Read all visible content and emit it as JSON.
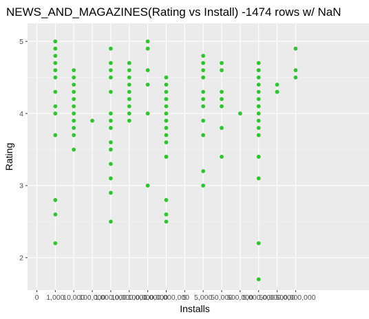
{
  "chart_data": {
    "type": "scatter",
    "title": "NEWS_AND_MAGAZINES(Rating vs Install) -1474 rows w/ NaN",
    "xlabel": "Installs",
    "ylabel": "Rating",
    "x_axis_kind": "categorical",
    "categories": [
      "0",
      "1,000",
      "10,000",
      "100,000",
      "1,000,000",
      "10,000,000",
      "100,000,000",
      "1,000,000,000",
      "5",
      "5,000",
      "50,000",
      "500,000",
      "5,000,000",
      "50,000,000",
      "500,000,000"
    ],
    "ylim": [
      1.55,
      5.25
    ],
    "y_ticks": [
      2,
      3,
      4,
      5
    ],
    "grid": true,
    "point_color": "#2ec62e",
    "panel_color": "#ebebeb",
    "series": [
      {
        "points": [
          {
            "x": "1,000",
            "y": 5.0
          },
          {
            "x": "1,000",
            "y": 4.9
          },
          {
            "x": "1,000",
            "y": 4.8
          },
          {
            "x": "1,000",
            "y": 4.7
          },
          {
            "x": "1,000",
            "y": 4.6
          },
          {
            "x": "1,000",
            "y": 4.5
          },
          {
            "x": "1,000",
            "y": 4.3
          },
          {
            "x": "1,000",
            "y": 4.1
          },
          {
            "x": "1,000",
            "y": 4.0
          },
          {
            "x": "1,000",
            "y": 3.7
          },
          {
            "x": "1,000",
            "y": 2.8
          },
          {
            "x": "1,000",
            "y": 2.6
          },
          {
            "x": "1,000",
            "y": 2.2
          },
          {
            "x": "10,000",
            "y": 4.6
          },
          {
            "x": "10,000",
            "y": 4.5
          },
          {
            "x": "10,000",
            "y": 4.4
          },
          {
            "x": "10,000",
            "y": 4.3
          },
          {
            "x": "10,000",
            "y": 4.2
          },
          {
            "x": "10,000",
            "y": 4.1
          },
          {
            "x": "10,000",
            "y": 4.0
          },
          {
            "x": "10,000",
            "y": 3.9
          },
          {
            "x": "10,000",
            "y": 3.8
          },
          {
            "x": "10,000",
            "y": 3.7
          },
          {
            "x": "10,000",
            "y": 3.5
          },
          {
            "x": "100,000",
            "y": 3.9
          },
          {
            "x": "1,000,000",
            "y": 4.9
          },
          {
            "x": "1,000,000",
            "y": 4.7
          },
          {
            "x": "1,000,000",
            "y": 4.6
          },
          {
            "x": "1,000,000",
            "y": 4.5
          },
          {
            "x": "1,000,000",
            "y": 4.3
          },
          {
            "x": "1,000,000",
            "y": 4.0
          },
          {
            "x": "1,000,000",
            "y": 3.9
          },
          {
            "x": "1,000,000",
            "y": 3.8
          },
          {
            "x": "1,000,000",
            "y": 3.6
          },
          {
            "x": "1,000,000",
            "y": 3.5
          },
          {
            "x": "1,000,000",
            "y": 3.3
          },
          {
            "x": "1,000,000",
            "y": 3.1
          },
          {
            "x": "1,000,000",
            "y": 2.9
          },
          {
            "x": "1,000,000",
            "y": 2.5
          },
          {
            "x": "10,000,000",
            "y": 4.7
          },
          {
            "x": "10,000,000",
            "y": 4.6
          },
          {
            "x": "10,000,000",
            "y": 4.5
          },
          {
            "x": "10,000,000",
            "y": 4.4
          },
          {
            "x": "10,000,000",
            "y": 4.3
          },
          {
            "x": "10,000,000",
            "y": 4.2
          },
          {
            "x": "10,000,000",
            "y": 4.1
          },
          {
            "x": "10,000,000",
            "y": 4.0
          },
          {
            "x": "10,000,000",
            "y": 3.9
          },
          {
            "x": "100,000,000",
            "y": 5.0
          },
          {
            "x": "100,000,000",
            "y": 4.9
          },
          {
            "x": "100,000,000",
            "y": 4.6
          },
          {
            "x": "100,000,000",
            "y": 4.4
          },
          {
            "x": "100,000,000",
            "y": 4.0
          },
          {
            "x": "100,000,000",
            "y": 3.0
          },
          {
            "x": "1,000,000,000",
            "y": 4.5
          },
          {
            "x": "1,000,000,000",
            "y": 4.4
          },
          {
            "x": "1,000,000,000",
            "y": 4.3
          },
          {
            "x": "1,000,000,000",
            "y": 4.2
          },
          {
            "x": "1,000,000,000",
            "y": 4.1
          },
          {
            "x": "1,000,000,000",
            "y": 4.0
          },
          {
            "x": "1,000,000,000",
            "y": 3.9
          },
          {
            "x": "1,000,000,000",
            "y": 3.8
          },
          {
            "x": "1,000,000,000",
            "y": 3.7
          },
          {
            "x": "1,000,000,000",
            "y": 3.6
          },
          {
            "x": "1,000,000,000",
            "y": 3.4
          },
          {
            "x": "1,000,000,000",
            "y": 2.8
          },
          {
            "x": "1,000,000,000",
            "y": 2.6
          },
          {
            "x": "1,000,000,000",
            "y": 2.5
          },
          {
            "x": "5,000",
            "y": 4.8
          },
          {
            "x": "5,000",
            "y": 4.7
          },
          {
            "x": "5,000",
            "y": 4.6
          },
          {
            "x": "5,000",
            "y": 4.5
          },
          {
            "x": "5,000",
            "y": 4.3
          },
          {
            "x": "5,000",
            "y": 4.2
          },
          {
            "x": "5,000",
            "y": 4.1
          },
          {
            "x": "5,000",
            "y": 3.9
          },
          {
            "x": "5,000",
            "y": 3.7
          },
          {
            "x": "5,000",
            "y": 3.2
          },
          {
            "x": "5,000",
            "y": 3.0
          },
          {
            "x": "50,000",
            "y": 4.7
          },
          {
            "x": "50,000",
            "y": 4.6
          },
          {
            "x": "50,000",
            "y": 4.3
          },
          {
            "x": "50,000",
            "y": 4.2
          },
          {
            "x": "50,000",
            "y": 4.1
          },
          {
            "x": "50,000",
            "y": 3.8
          },
          {
            "x": "50,000",
            "y": 3.4
          },
          {
            "x": "500,000",
            "y": 4.0
          },
          {
            "x": "5,000,000",
            "y": 4.6
          },
          {
            "x": "5,000,000",
            "y": 4.3
          },
          {
            "x": "5,000,000",
            "y": 4.2
          },
          {
            "x": "5,000,000",
            "y": 4.1
          },
          {
            "x": "5,000,000",
            "y": 4.0
          },
          {
            "x": "5,000,000",
            "y": 3.9
          },
          {
            "x": "5,000,000",
            "y": 3.8
          },
          {
            "x": "5,000,000",
            "y": 3.7
          },
          {
            "x": "5,000,000",
            "y": 3.4
          },
          {
            "x": "5,000,000",
            "y": 2.2
          },
          {
            "x": "5,000,000",
            "y": 1.7
          },
          {
            "x": "50,000,000",
            "y": 4.3
          },
          {
            "x": "500,000,000",
            "y": 4.9
          },
          {
            "x": "500,000,000",
            "y": 4.6
          },
          {
            "x": "500,000,000",
            "y": 4.5
          },
          {
            "x": "1,000,000,000",
            "y": 3.4
          },
          {
            "x": "5,000,000",
            "y": 3.4
          }
        ]
      },
      {
        "points": [
          {
            "x": "5,000,000",
            "y": 4.7
          },
          {
            "x": "5,000,000",
            "y": 4.6
          },
          {
            "x": "5,000,000",
            "y": 4.5
          },
          {
            "x": "5,000,000",
            "y": 4.4
          },
          {
            "x": "5,000,000",
            "y": 4.1
          },
          {
            "x": "5,000,000",
            "y": 3.1
          },
          {
            "x": "50,000,000",
            "y": 4.4
          },
          {
            "x": "50,000,000",
            "y": 4.3
          }
        ]
      }
    ]
  }
}
